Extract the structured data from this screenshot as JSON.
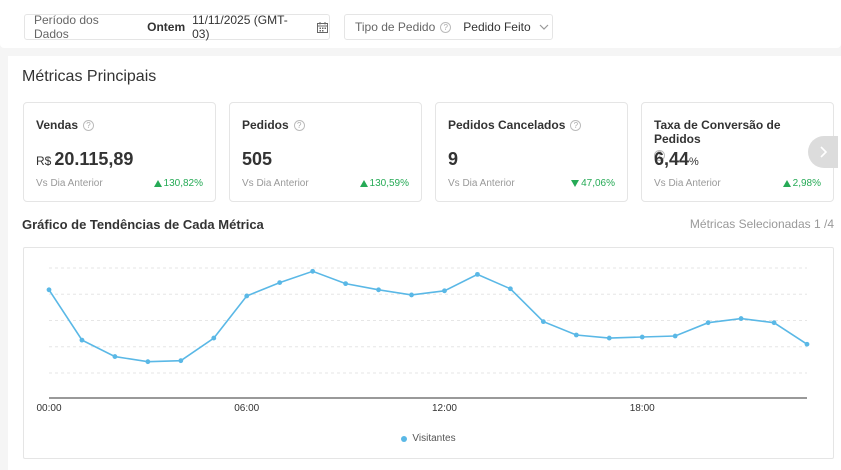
{
  "filters": {
    "period_label": "Período dos Dados",
    "period_value": "Ontem",
    "period_date": "11/11/2025 (GMT-03)",
    "type_label": "Tipo de Pedido",
    "type_value": "Pedido Feito"
  },
  "main": {
    "title": "Métricas Principais",
    "metrics": [
      {
        "label": "Vendas",
        "currency": "R$",
        "value": "20.115,89",
        "unit": "",
        "comparison": "Vs Dia Anterior",
        "change": "130,82%",
        "direction": "up"
      },
      {
        "label": "Pedidos",
        "currency": "",
        "value": "505",
        "unit": "",
        "comparison": "Vs Dia Anterior",
        "change": "130,59%",
        "direction": "up"
      },
      {
        "label": "Pedidos Cancelados",
        "currency": "",
        "value": "9",
        "unit": "",
        "comparison": "Vs Dia Anterior",
        "change": "47,06%",
        "direction": "down"
      },
      {
        "label": "Taxa de Conversão de Pedidos",
        "currency": "",
        "value": "6,44",
        "unit": "%",
        "comparison": "Vs Dia Anterior",
        "change": "2,98%",
        "direction": "up"
      }
    ]
  },
  "trend": {
    "title": "Gráfico de Tendências de Cada Métrica",
    "selected": "Métricas Selecionadas 1 /4"
  },
  "colors": {
    "accent_line": "#5ab8e6",
    "positive": "#26aa56"
  },
  "chart_data": {
    "type": "line",
    "x": [
      "00:00",
      "01:00",
      "02:00",
      "03:00",
      "04:00",
      "05:00",
      "06:00",
      "07:00",
      "08:00",
      "09:00",
      "10:00",
      "11:00",
      "12:00",
      "13:00",
      "14:00",
      "15:00",
      "16:00",
      "17:00",
      "18:00",
      "19:00",
      "20:00",
      "21:00",
      "22:00",
      "23:00"
    ],
    "x_ticks": [
      "00:00",
      "06:00",
      "12:00",
      "18:00"
    ],
    "series": [
      {
        "name": "Visitantes",
        "values": [
          81,
          32,
          16,
          11,
          12,
          34,
          75,
          88,
          99,
          87,
          81,
          76,
          80,
          96,
          82,
          50,
          37,
          34,
          35,
          36,
          49,
          53,
          49,
          28
        ]
      }
    ],
    "ylim": [
      0,
      110
    ],
    "grid": true,
    "legend": "bottom-center"
  }
}
